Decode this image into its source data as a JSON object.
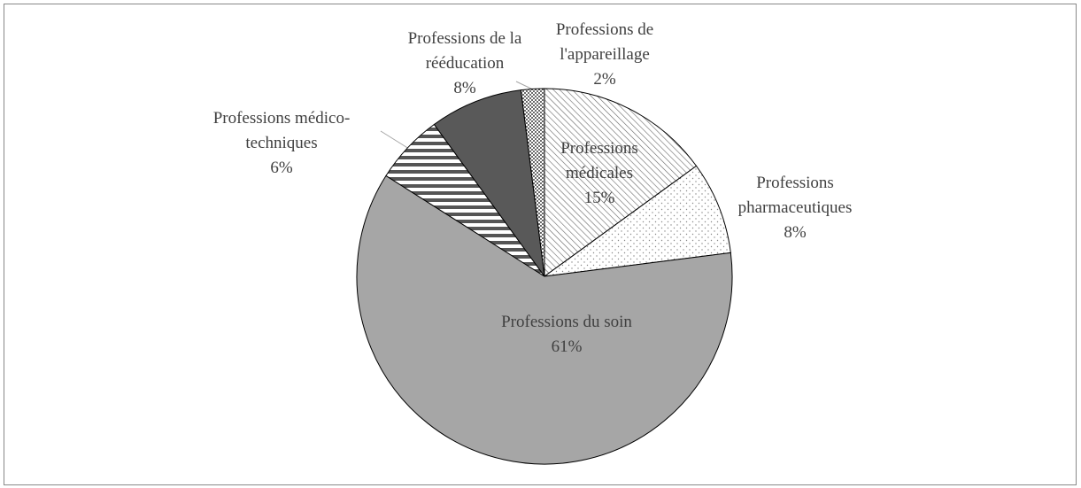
{
  "chart_data": {
    "type": "pie",
    "categories": [
      "Professions médicales",
      "Professions pharmaceutiques",
      "Professions du soin",
      "Professions médico-techniques",
      "Professions de la rééducation",
      "Professions de l'appareillage"
    ],
    "values": [
      15,
      8,
      61,
      6,
      8,
      2
    ],
    "value_labels": [
      "15%",
      "8%",
      "61%",
      "6%",
      "8%",
      "2%"
    ]
  }
}
